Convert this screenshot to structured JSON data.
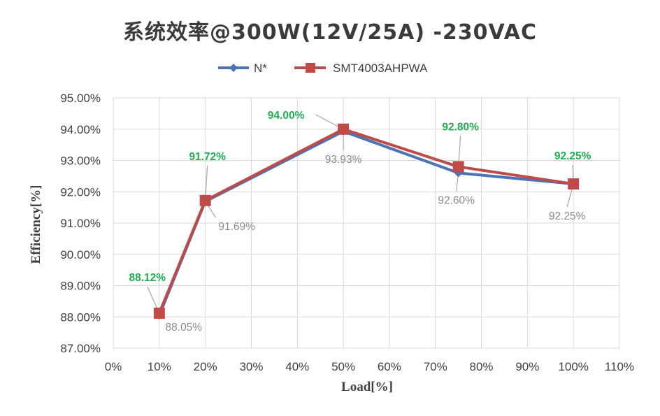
{
  "chart_data": {
    "type": "line",
    "title": "系统效率@300W(12V/25A) -230VAC",
    "xlabel": "Load[%]",
    "ylabel": "Efficiency[%]",
    "xlim": [
      0,
      110
    ],
    "ylim": [
      87,
      95
    ],
    "x_ticks": [
      "0%",
      "10%",
      "20%",
      "30%",
      "40%",
      "50%",
      "60%",
      "70%",
      "80%",
      "90%",
      "100%",
      "110%"
    ],
    "y_ticks": [
      "87.00%",
      "88.00%",
      "89.00%",
      "90.00%",
      "91.00%",
      "92.00%",
      "93.00%",
      "94.00%",
      "95.00%"
    ],
    "grid": true,
    "legend_position": "top",
    "x": [
      10,
      20,
      50,
      75,
      100
    ],
    "series": [
      {
        "name": "N*",
        "color": "#4a74b5",
        "marker": "diamond",
        "values": [
          88.05,
          91.69,
          93.93,
          92.6,
          92.25
        ],
        "data_labels": [
          "88.05%",
          "91.69%",
          "93.93%",
          "92.60%",
          "92.25%"
        ],
        "label_color": "#8a8a8a"
      },
      {
        "name": "SMT4003AHPWA",
        "color": "#be4b48",
        "marker": "square",
        "values": [
          88.12,
          91.72,
          94.0,
          92.8,
          92.25
        ],
        "data_labels": [
          "88.12%",
          "91.72%",
          "94.00%",
          "92.80%",
          "92.25%"
        ],
        "label_color": "#1fae52"
      }
    ]
  }
}
